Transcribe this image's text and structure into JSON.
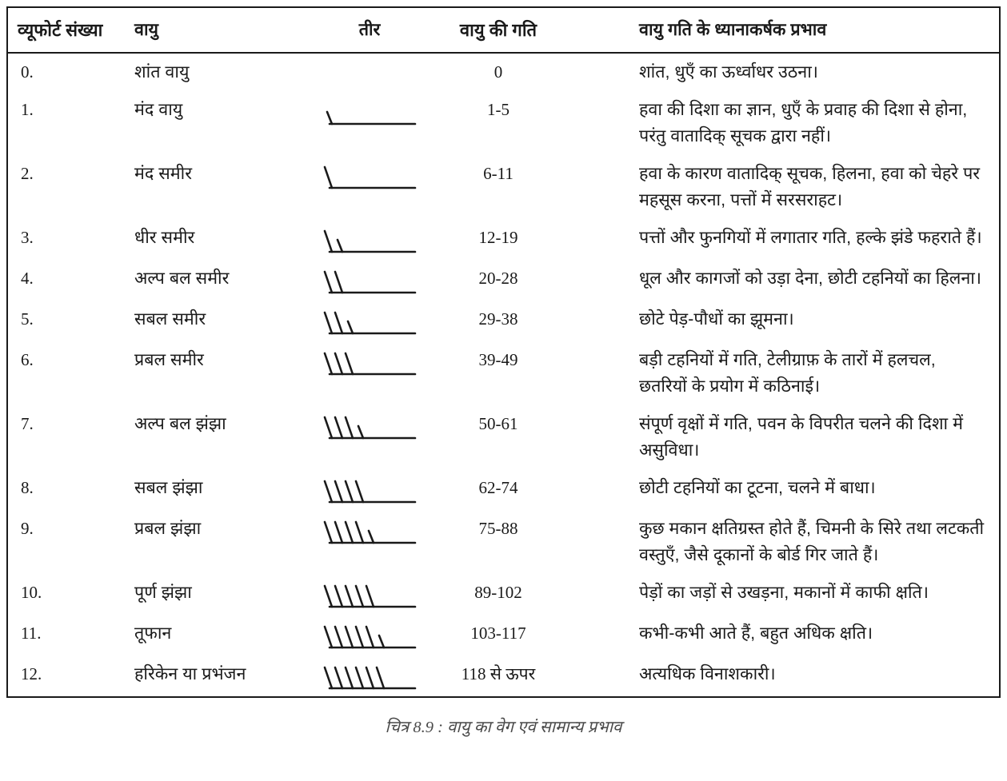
{
  "table": {
    "headers": [
      "व्यूफोर्ट संख्या",
      "वायु",
      "तीर",
      "वायु की गति",
      "वायु गति के ध्यानाकर्षक प्रभाव"
    ],
    "rows": [
      {
        "num": "0.",
        "wind": "शांत वायु",
        "barb": {
          "long": 0,
          "short": 0
        },
        "speed": "0",
        "effect": "शांत, धुएँ का ऊर्ध्वाधर उठना।"
      },
      {
        "num": "1.",
        "wind": "मंद वायु",
        "barb": {
          "long": 0,
          "short": 1
        },
        "speed": "1-5",
        "effect": "हवा की दिशा का ज्ञान, धुएँ के प्रवाह की दिशा से होना, परंतु वातादिक् सूचक द्वारा नहीं।"
      },
      {
        "num": "2.",
        "wind": "मंद समीर",
        "barb": {
          "long": 1,
          "short": 0
        },
        "speed": "6-11",
        "effect": "हवा के कारण वातादिक् सूचक, हिलना, हवा को चेहरे पर महसूस करना, पत्तों में सरसराहट।"
      },
      {
        "num": "3.",
        "wind": "धीर समीर",
        "barb": {
          "long": 1,
          "short": 1
        },
        "speed": "12-19",
        "effect": "पत्तों और फुनगियों में लगातार गति, हल्के झंडे फहराते हैं।"
      },
      {
        "num": "4.",
        "wind": "अल्प बल समीर",
        "barb": {
          "long": 2,
          "short": 0
        },
        "speed": "20-28",
        "effect": "धूल और कागजों को उड़ा देना, छोटी टहनियों का हिलना।"
      },
      {
        "num": "5.",
        "wind": "सबल समीर",
        "barb": {
          "long": 2,
          "short": 1
        },
        "speed": "29-38",
        "effect": "छोटे पेड़-पौधों का झूमना।"
      },
      {
        "num": "6.",
        "wind": "प्रबल समीर",
        "barb": {
          "long": 3,
          "short": 0
        },
        "speed": "39-49",
        "effect": "बड़ी टहनियों में गति, टेलीग्राफ़ के तारों में हलचल, छतरियों के प्रयोग में कठिनाई।"
      },
      {
        "num": "7.",
        "wind": "अल्प बल झंझा",
        "barb": {
          "long": 3,
          "short": 1
        },
        "speed": "50-61",
        "effect": "संपूर्ण वृक्षों में गति, पवन के विपरीत चलने की दिशा में असुविधा।"
      },
      {
        "num": "8.",
        "wind": "सबल झंझा",
        "barb": {
          "long": 4,
          "short": 0
        },
        "speed": "62-74",
        "effect": "छोटी टहनियों का टूटना, चलने में बाधा।"
      },
      {
        "num": "9.",
        "wind": "प्रबल झंझा",
        "barb": {
          "long": 4,
          "short": 1
        },
        "speed": "75-88",
        "effect": "कुछ मकान क्षतिग्रस्त होते हैं, चिमनी के सिरे तथा लटकती वस्तुएँ, जैसे दूकानों के बोर्ड गिर जाते हैं।"
      },
      {
        "num": "10.",
        "wind": "पूर्ण झंझा",
        "barb": {
          "long": 5,
          "short": 0
        },
        "speed": "89-102",
        "effect": "पेड़ों का जड़ों से उखड़ना, मकानों में काफी क्षति।"
      },
      {
        "num": "11.",
        "wind": "तूफान",
        "barb": {
          "long": 5,
          "short": 1
        },
        "speed": "103-117",
        "effect": "कभी-कभी आते हैं, बहुत अधिक क्षति।"
      },
      {
        "num": "12.",
        "wind": "हरिकेन या प्रभंजन",
        "barb": {
          "long": 6,
          "short": 0
        },
        "speed": "118 से ऊपर",
        "effect": "अत्यधिक विनाशकारी।"
      }
    ]
  },
  "caption": "चित्र 8.9 : वायु का वेग एवं सामान्य प्रभाव",
  "colors": {
    "text": "#1a1a1a",
    "border": "#1a1a1a",
    "caption_text": "#4a4a4a",
    "background": "#ffffff"
  }
}
